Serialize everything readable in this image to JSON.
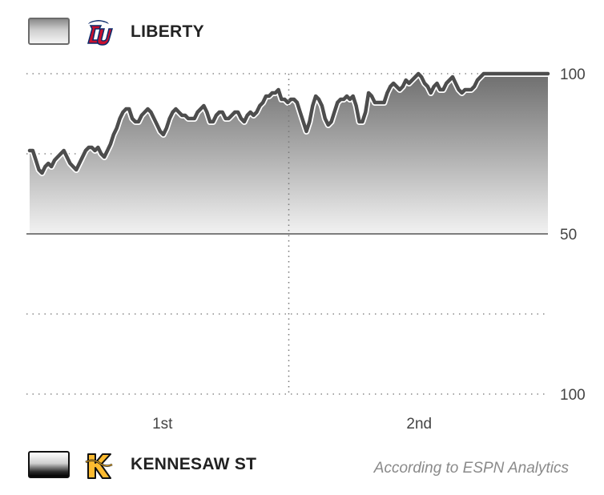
{
  "home_team": {
    "name": "LIBERTY",
    "logo": "liberty-flames-logo",
    "swatch_colors": [
      "#8a8a8a",
      "#f4f4f4"
    ]
  },
  "away_team": {
    "name": "KENNESAW ST",
    "logo": "kennesaw-state-owls-logo",
    "swatch_colors": [
      "#ffffff",
      "#000000"
    ]
  },
  "source_note": "According to ESPN Analytics",
  "chart_data": {
    "type": "area",
    "title": "",
    "xlabel": "",
    "ylabel": "",
    "y_tick_labels": [
      "100",
      "50",
      "100"
    ],
    "x_tick_labels": [
      "1st",
      "2nd"
    ],
    "period_boundary": 0.5,
    "ylim": [
      0,
      100
    ],
    "baseline": 50,
    "grid": true,
    "series": [
      {
        "x": [
          0,
          0.006,
          0.012,
          0.018,
          0.024,
          0.03,
          0.036,
          0.042,
          0.048,
          0.054,
          0.06,
          0.066,
          0.072,
          0.078,
          0.084,
          0.09,
          0.096,
          0.102,
          0.108,
          0.114,
          0.12,
          0.126,
          0.132,
          0.138,
          0.144,
          0.15,
          0.156,
          0.162,
          0.168,
          0.174,
          0.18,
          0.186,
          0.192,
          0.198,
          0.204,
          0.21,
          0.216,
          0.222,
          0.228,
          0.234,
          0.24,
          0.246,
          0.252,
          0.258,
          0.264,
          0.27,
          0.276,
          0.282,
          0.288,
          0.294,
          0.3,
          0.306,
          0.312,
          0.318,
          0.324,
          0.33,
          0.336,
          0.342,
          0.348,
          0.354,
          0.36,
          0.366,
          0.372,
          0.378,
          0.384,
          0.39,
          0.396,
          0.402,
          0.408,
          0.414,
          0.42,
          0.426,
          0.432,
          0.438,
          0.444,
          0.45,
          0.456,
          0.462,
          0.468,
          0.474,
          0.48,
          0.486,
          0.492,
          0.498,
          0.504,
          0.51,
          0.516,
          0.522,
          0.528,
          0.534,
          0.54,
          0.546,
          0.552,
          0.558,
          0.564,
          0.57,
          0.576,
          0.582,
          0.588,
          0.594,
          0.6,
          0.606,
          0.612,
          0.618,
          0.624,
          0.63,
          0.636,
          0.642,
          0.648,
          0.654,
          0.66,
          0.666,
          0.672,
          0.678,
          0.684,
          0.69,
          0.696,
          0.702,
          0.708,
          0.714,
          0.72,
          0.726,
          0.732,
          0.738,
          0.744,
          0.75,
          0.756,
          0.762,
          0.768,
          0.774,
          0.78,
          0.786,
          0.792,
          0.798,
          0.804,
          0.81,
          0.816,
          0.822,
          0.828,
          0.834,
          0.84,
          0.846,
          0.852,
          0.858,
          0.864,
          0.87,
          0.876,
          0.882,
          0.888,
          0.894,
          0.9,
          0.906,
          0.912,
          0.918,
          0.924,
          0.93,
          0.936,
          0.942,
          0.948,
          0.954,
          0.96,
          0.966,
          0.972,
          0.978,
          0.984,
          0.99,
          1
        ],
        "y": [
          76,
          76,
          73,
          70,
          69,
          71,
          72,
          71,
          73,
          74,
          75,
          76,
          74,
          72,
          71,
          70,
          72,
          74,
          76,
          77,
          77,
          76,
          77,
          75,
          74,
          76,
          78,
          81,
          83,
          86,
          88,
          89,
          89,
          86,
          85,
          85,
          87,
          88,
          89,
          88,
          86,
          84,
          82,
          81,
          83,
          86,
          88,
          89,
          88,
          87,
          87,
          86,
          86,
          86,
          88,
          89,
          90,
          88,
          85,
          85,
          87,
          88,
          88,
          86,
          86,
          87,
          88,
          88,
          86,
          85,
          87,
          88,
          87,
          88,
          90,
          91,
          93,
          93,
          94,
          94,
          95,
          92,
          92,
          91,
          92,
          92,
          91,
          88,
          85,
          82,
          85,
          90,
          93,
          92,
          90,
          86,
          84,
          85,
          88,
          91,
          92,
          92,
          93,
          92,
          93,
          90,
          85,
          85,
          88,
          94,
          93,
          91,
          91,
          91,
          91,
          94,
          96,
          97,
          96,
          95,
          96,
          98,
          97,
          98,
          99,
          100,
          99,
          97,
          96,
          94,
          96,
          97,
          95,
          95,
          97,
          98,
          99,
          97,
          95,
          94,
          95,
          95,
          95,
          96,
          98,
          99,
          100,
          100,
          100,
          100,
          100,
          100,
          100,
          100,
          100,
          100,
          100,
          100,
          100,
          100,
          100,
          100,
          100,
          100,
          100,
          100,
          100
        ]
      }
    ]
  }
}
